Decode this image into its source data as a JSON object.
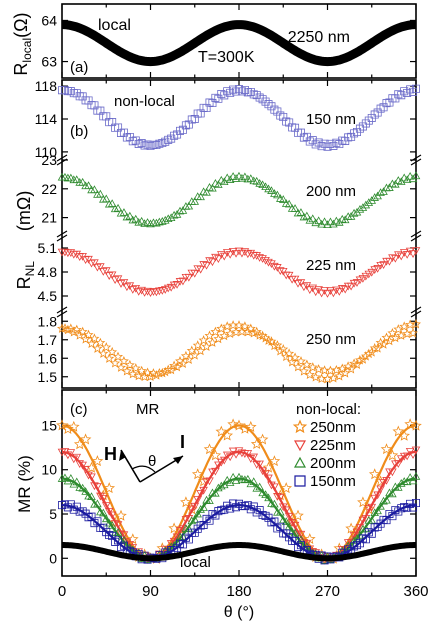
{
  "chart_data": [
    {
      "panel": "(a)",
      "type": "line",
      "ylabel": "R",
      "ylabel_sub": "local",
      "ylabel_unit": "(Ω)",
      "ylim": [
        62.6,
        64.4
      ],
      "yticks": [
        "63",
        "64"
      ],
      "xlim": [
        0,
        360
      ],
      "annotations": [
        "local",
        "2250 nm",
        "T=300K"
      ],
      "series": [
        {
          "name": "2250 nm",
          "color": "#000000",
          "x": [
            0,
            45,
            90,
            135,
            180,
            225,
            270,
            315,
            360
          ],
          "y": [
            63.9,
            63.5,
            63.0,
            63.5,
            63.9,
            63.5,
            63.0,
            63.5,
            63.9
          ]
        }
      ]
    },
    {
      "panel": "(b)",
      "type": "scatter",
      "ylabel": "R",
      "ylabel_sub": "NL",
      "ylabel_unit": "(mΩ)",
      "xlim": [
        0,
        360
      ],
      "annotations": [
        "non-local"
      ],
      "subpanels": [
        {
          "label": "150 nm",
          "color": "#6b6bc9",
          "marker": "square",
          "ylim": [
            109.5,
            118.5
          ],
          "yticks": [
            "110",
            "114",
            "118"
          ],
          "x": [
            0,
            45,
            90,
            135,
            180,
            225,
            270,
            315,
            360
          ],
          "y": [
            117.5,
            114.0,
            110.8,
            114.0,
            117.2,
            114.0,
            110.8,
            114.0,
            117.5
          ]
        },
        {
          "label": "200 nm",
          "color": "#2e8b2e",
          "marker": "triangle-up",
          "ylim": [
            20.5,
            23.0
          ],
          "yticks": [
            "21",
            "22",
            "23"
          ],
          "x": [
            0,
            45,
            90,
            135,
            180,
            225,
            270,
            315,
            360
          ],
          "y": [
            22.2,
            21.5,
            20.8,
            21.6,
            22.4,
            21.5,
            20.8,
            21.5,
            22.2
          ]
        },
        {
          "label": "225 nm",
          "color": "#e8403a",
          "marker": "triangle-down",
          "ylim": [
            4.35,
            5.25
          ],
          "yticks": [
            "4.5",
            "4.8",
            "5.1"
          ],
          "x": [
            0,
            45,
            90,
            135,
            180,
            225,
            270,
            315,
            360
          ],
          "y": [
            5.05,
            4.8,
            4.55,
            4.8,
            5.05,
            4.8,
            4.55,
            4.8,
            5.05
          ]
        },
        {
          "label": "250 nm",
          "color": "#f08c1a",
          "marker": "star",
          "ylim": [
            1.45,
            1.85
          ],
          "yticks": [
            "1.5",
            "1.6",
            "1.7",
            "1.8"
          ],
          "x": [
            0,
            45,
            90,
            135,
            180,
            225,
            270,
            315,
            360
          ],
          "y": [
            1.73,
            1.63,
            1.51,
            1.62,
            1.72,
            1.62,
            1.51,
            1.63,
            1.76
          ]
        }
      ]
    },
    {
      "panel": "(c)",
      "type": "scatter",
      "title": "MR",
      "xlabel": "θ (°)",
      "ylabel": "MR (%)",
      "xlim": [
        0,
        360
      ],
      "ylim": [
        -2,
        19
      ],
      "xticks": [
        "0",
        "90",
        "180",
        "270",
        "360"
      ],
      "yticks": [
        "0",
        "5",
        "10",
        "15"
      ],
      "legend_title": "non-local:",
      "legend_position": "top-right",
      "annotations": [
        "local",
        "H",
        "I",
        "θ"
      ],
      "series": [
        {
          "name": "250nm",
          "color": "#f08c1a",
          "marker": "star",
          "amplitude": 15.0
        },
        {
          "name": "225nm",
          "color": "#e8403a",
          "marker": "triangle-down",
          "amplitude": 12.0
        },
        {
          "name": "200nm",
          "color": "#2e8b2e",
          "marker": "triangle-up",
          "amplitude": 9.0
        },
        {
          "name": "150nm",
          "color": "#1c1ca0",
          "marker": "square",
          "amplitude": 6.0
        },
        {
          "name": "local",
          "color": "#000000",
          "marker": "line",
          "amplitude": 1.5
        }
      ]
    }
  ]
}
